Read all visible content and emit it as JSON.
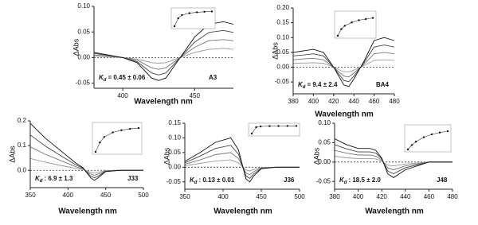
{
  "chart_data": [
    {
      "type": "line",
      "x_label": "Wavelength nm",
      "y_label": "ΔAbs",
      "id_label": "A3",
      "kd_label": {
        "symbol": "K",
        "subscript": "d",
        "text": "= 0.45 ± 0.06"
      },
      "x": [
        380,
        390,
        400,
        410,
        420,
        425,
        430,
        440,
        450,
        460,
        470,
        477
      ],
      "series": [
        {
          "color": "#999999",
          "values": [
            0.003,
            0.001,
            0,
            -0.003,
            -0.01,
            -0.011,
            -0.01,
            0,
            0.01,
            0.016,
            0.018,
            0.016
          ]
        },
        {
          "color": "#777777",
          "values": [
            0.005,
            0.003,
            0,
            -0.005,
            -0.02,
            -0.023,
            -0.02,
            0,
            0.02,
            0.033,
            0.035,
            0.033
          ]
        },
        {
          "color": "#444444",
          "values": [
            0.008,
            0.004,
            0,
            -0.008,
            -0.03,
            -0.034,
            -0.03,
            0,
            0.03,
            0.049,
            0.053,
            0.049
          ]
        },
        {
          "color": "#111111",
          "values": [
            0.01,
            0.005,
            0,
            -0.01,
            -0.04,
            -0.045,
            -0.04,
            0,
            0.04,
            0.065,
            0.07,
            0.065
          ]
        }
      ],
      "xlim": [
        380,
        477
      ],
      "xticks": [
        400,
        450
      ],
      "ylim": [
        -0.06,
        0.1
      ],
      "yticks": [
        {
          "value": 0.1,
          "label": "0.10"
        },
        0.05,
        {
          "value": 0,
          "label": "0.00"
        },
        -0.05
      ],
      "hline": 0,
      "inset": {
        "x": [
          0,
          1,
          2,
          4,
          6,
          8,
          10
        ],
        "values": [
          0,
          0.5,
          0.7,
          0.82,
          0.88,
          0.91,
          0.93
        ],
        "xlim": [
          0,
          10
        ],
        "ylim": [
          0,
          1
        ]
      }
    },
    {
      "type": "line",
      "x_label": "Wavelength nm",
      "y_label": "ΔAbs",
      "id_label": "BA4",
      "kd_label": {
        "symbol": "K",
        "subscript": "d",
        "text": "= 9.4 ± 2.4"
      },
      "x": [
        380,
        390,
        400,
        410,
        420,
        430,
        435,
        440,
        450,
        460,
        470,
        480
      ],
      "series": [
        {
          "color": "#999999",
          "values": [
            0.013,
            0.014,
            0.015,
            0.013,
            0,
            -0.015,
            -0.016,
            -0.01,
            0.005,
            0.023,
            0.025,
            0.023
          ]
        },
        {
          "color": "#777777",
          "values": [
            0.025,
            0.028,
            0.03,
            0.025,
            0,
            -0.03,
            -0.033,
            -0.02,
            0.01,
            0.045,
            0.05,
            0.045
          ]
        },
        {
          "color": "#444444",
          "values": [
            0.038,
            0.041,
            0.045,
            0.038,
            0,
            -0.045,
            -0.049,
            -0.03,
            0.015,
            0.068,
            0.075,
            0.068
          ]
        },
        {
          "color": "#111111",
          "values": [
            0.05,
            0.055,
            0.06,
            0.05,
            0,
            -0.06,
            -0.065,
            -0.04,
            0.02,
            0.09,
            0.1,
            0.09
          ]
        }
      ],
      "xlim": [
        380,
        480
      ],
      "xticks": [
        380,
        400,
        420,
        440,
        460,
        480
      ],
      "ylim": [
        -0.09,
        0.2
      ],
      "yticks": [
        {
          "value": 0.2,
          "label": "0.20"
        },
        0.15,
        {
          "value": 0.1,
          "label": "0.10"
        },
        0.05,
        {
          "value": 0,
          "label": "0.00"
        },
        -0.05
      ],
      "hline": 0,
      "inset": {
        "x": [
          0,
          1,
          2,
          4,
          6,
          8,
          10
        ],
        "values": [
          0,
          0.3,
          0.45,
          0.6,
          0.7,
          0.75,
          0.8
        ],
        "xlim": [
          0,
          10
        ],
        "ylim": [
          0,
          1
        ]
      }
    },
    {
      "type": "line",
      "x_label": "Wavelength nm",
      "y_label": "ΔAbs",
      "id_label": "J33",
      "kd_label": {
        "symbol": "K",
        "subscript": "d",
        "text": ": 6.9 ± 1.3"
      },
      "x": [
        350,
        370,
        390,
        410,
        420,
        430,
        435,
        440,
        450,
        470,
        500
      ],
      "series": [
        {
          "color": "#999999",
          "values": [
            0.048,
            0.033,
            0.02,
            0.008,
            0.003,
            -0.008,
            -0.01,
            -0.008,
            -0.001,
            0,
            0
          ]
        },
        {
          "color": "#777777",
          "values": [
            0.095,
            0.065,
            0.04,
            0.015,
            0.005,
            -0.015,
            -0.02,
            -0.015,
            -0.003,
            0,
            0
          ]
        },
        {
          "color": "#444444",
          "values": [
            0.143,
            0.098,
            0.06,
            0.023,
            0.008,
            -0.023,
            -0.03,
            -0.023,
            -0.004,
            0,
            0
          ]
        },
        {
          "color": "#111111",
          "values": [
            0.19,
            0.13,
            0.08,
            0.03,
            0.01,
            -0.03,
            -0.04,
            -0.03,
            -0.005,
            0,
            0
          ]
        }
      ],
      "xlim": [
        350,
        500
      ],
      "xticks": [
        350,
        400,
        450,
        500
      ],
      "ylim": [
        -0.07,
        0.2
      ],
      "yticks": [
        0.2,
        0.1,
        {
          "value": 0,
          "label": "0.0"
        }
      ],
      "hline": 0,
      "inset": {
        "x": [
          0,
          1,
          2,
          4,
          6,
          8,
          10
        ],
        "values": [
          0,
          0.35,
          0.55,
          0.72,
          0.8,
          0.85,
          0.88
        ],
        "xlim": [
          0,
          10
        ],
        "ylim": [
          0,
          1
        ]
      }
    },
    {
      "type": "line",
      "x_label": "Wavelength nm",
      "y_label": "ΔAbs",
      "id_label": "J36",
      "kd_label": {
        "symbol": "K",
        "subscript": "d",
        "text": ": 0.13 ± 0.01"
      },
      "x": [
        350,
        370,
        390,
        410,
        420,
        430,
        435,
        440,
        450,
        470,
        500
      ],
      "series": [
        {
          "color": "#999999",
          "values": [
            0.005,
            0.013,
            0.021,
            0.025,
            0.015,
            -0.01,
            -0.013,
            -0.008,
            -0.001,
            0,
            0
          ]
        },
        {
          "color": "#777777",
          "values": [
            0.01,
            0.025,
            0.043,
            0.05,
            0.03,
            -0.02,
            -0.025,
            -0.015,
            -0.003,
            0,
            0
          ]
        },
        {
          "color": "#444444",
          "values": [
            0.015,
            0.038,
            0.064,
            0.075,
            0.045,
            -0.03,
            -0.038,
            -0.023,
            -0.004,
            0,
            0
          ]
        },
        {
          "color": "#111111",
          "values": [
            0.02,
            0.05,
            0.085,
            0.1,
            0.06,
            -0.04,
            -0.05,
            -0.03,
            -0.005,
            0,
            0
          ]
        }
      ],
      "xlim": [
        350,
        500
      ],
      "xticks": [
        350,
        400,
        450,
        500
      ],
      "ylim": [
        -0.075,
        0.15
      ],
      "yticks": [
        0.15,
        {
          "value": 0.1,
          "label": "0.10"
        },
        0.05,
        {
          "value": 0,
          "label": "0.00"
        },
        -0.05
      ],
      "hline": 0,
      "inset": {
        "x": [
          0,
          1,
          2,
          4,
          6,
          8,
          10
        ],
        "values": [
          0,
          0.8,
          0.9,
          0.94,
          0.95,
          0.96,
          0.96
        ],
        "xlim": [
          0,
          10
        ],
        "ylim": [
          0,
          1
        ]
      }
    },
    {
      "type": "line",
      "x_label": "Wavelength nm",
      "y_label": "ΔAbs",
      "id_label": "J48",
      "kd_label": {
        "symbol": "K",
        "subscript": "d",
        "text": ": 18.5 ± 2.0"
      },
      "x": [
        380,
        390,
        400,
        410,
        415,
        420,
        425,
        430,
        440,
        460,
        480
      ],
      "series": [
        {
          "color": "#999999",
          "values": [
            0.015,
            0.011,
            0.009,
            0.009,
            0.008,
            0.003,
            -0.008,
            -0.01,
            -0.005,
            0,
            0
          ]
        },
        {
          "color": "#777777",
          "values": [
            0.03,
            0.023,
            0.018,
            0.018,
            0.015,
            0.005,
            -0.015,
            -0.02,
            -0.01,
            0,
            0
          ]
        },
        {
          "color": "#444444",
          "values": [
            0.045,
            0.034,
            0.026,
            0.026,
            0.023,
            0.008,
            -0.023,
            -0.03,
            -0.015,
            0,
            0
          ]
        },
        {
          "color": "#111111",
          "values": [
            0.06,
            0.045,
            0.035,
            0.035,
            0.03,
            0.01,
            -0.03,
            -0.04,
            -0.02,
            0,
            0
          ]
        }
      ],
      "xlim": [
        380,
        480
      ],
      "xticks": [
        380,
        400,
        420,
        440,
        460,
        480
      ],
      "ylim": [
        -0.07,
        0.1
      ],
      "yticks": [
        {
          "value": 0.1,
          "label": "0.10"
        },
        0.05,
        {
          "value": 0,
          "label": "0.00"
        },
        -0.05
      ],
      "hline": 0,
      "inset": {
        "x": [
          0,
          1,
          2,
          4,
          6,
          8,
          10
        ],
        "values": [
          0,
          0.2,
          0.35,
          0.55,
          0.68,
          0.76,
          0.82
        ],
        "xlim": [
          0,
          10
        ],
        "ylim": [
          0,
          1
        ]
      }
    }
  ]
}
